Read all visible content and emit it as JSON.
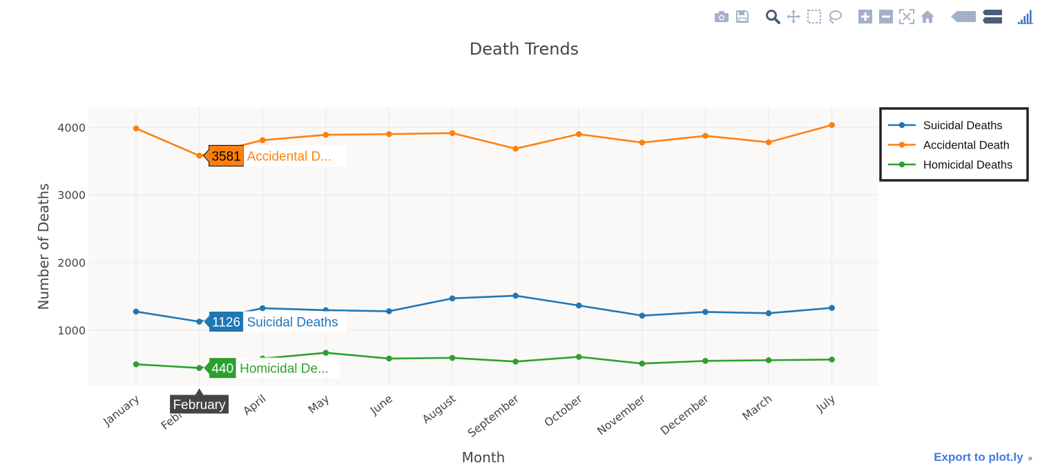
{
  "toolbar": {
    "buttons": [
      {
        "name": "camera-icon",
        "title": "Download plot as a png"
      },
      {
        "name": "save-icon",
        "title": "Save and edit plot in cloud"
      },
      {
        "name": "zoom-icon",
        "title": "Zoom"
      },
      {
        "name": "pan-icon",
        "title": "Pan"
      },
      {
        "name": "box-select-icon",
        "title": "Box Select"
      },
      {
        "name": "lasso-select-icon",
        "title": "Lasso Select"
      },
      {
        "name": "zoom-in-icon",
        "title": "Zoom in"
      },
      {
        "name": "zoom-out-icon",
        "title": "Zoom out"
      },
      {
        "name": "autoscale-icon",
        "title": "Autoscale"
      },
      {
        "name": "reset-axes-icon",
        "title": "Reset axes"
      },
      {
        "name": "hover-closest-icon",
        "title": "Show closest data on hover"
      },
      {
        "name": "hover-compare-icon",
        "title": "Compare data on hover"
      },
      {
        "name": "plotly-logo-icon",
        "title": "Produced with Plotly"
      }
    ],
    "icon_color": "#a3b1c8",
    "active_color": "#4a5d7a",
    "logo_color": "#3d72c7"
  },
  "export_link": "Export to plot.ly",
  "export_close": "»",
  "chart_data": {
    "type": "line",
    "title": "Death Trends",
    "xlabel": "Month",
    "ylabel": "Number of Deaths",
    "categories": [
      "January",
      "February",
      "April",
      "May",
      "June",
      "August",
      "September",
      "October",
      "November",
      "December",
      "March",
      "July"
    ],
    "ylim": [
      170,
      4300
    ],
    "yticks": [
      1000,
      2000,
      3000,
      4000
    ],
    "grid": true,
    "legend_position": "top-right outside",
    "plot_bg": "#faf9f8",
    "series": [
      {
        "name": "Suicidal Deaths",
        "color": "#1f77b4",
        "values": [
          1275,
          1126,
          1325,
          1295,
          1280,
          1470,
          1510,
          1365,
          1215,
          1270,
          1250,
          1330
        ]
      },
      {
        "name": "Accidental Death",
        "color": "#ff7f0e",
        "values": [
          3985,
          3581,
          3810,
          3890,
          3900,
          3915,
          3685,
          3900,
          3775,
          3875,
          3780,
          4035
        ]
      },
      {
        "name": "Homicidal Deaths",
        "color": "#2ca02c",
        "values": [
          495,
          440,
          580,
          665,
          580,
          590,
          535,
          605,
          505,
          545,
          555,
          565
        ]
      }
    ],
    "hover": {
      "category": "February",
      "labels": [
        {
          "series": 1,
          "value": "3581",
          "name": "Accidental D..."
        },
        {
          "series": 0,
          "value": "1126",
          "name": "Suicidal Deaths"
        },
        {
          "series": 2,
          "value": "440",
          "name": "Homicidal De..."
        }
      ]
    }
  }
}
